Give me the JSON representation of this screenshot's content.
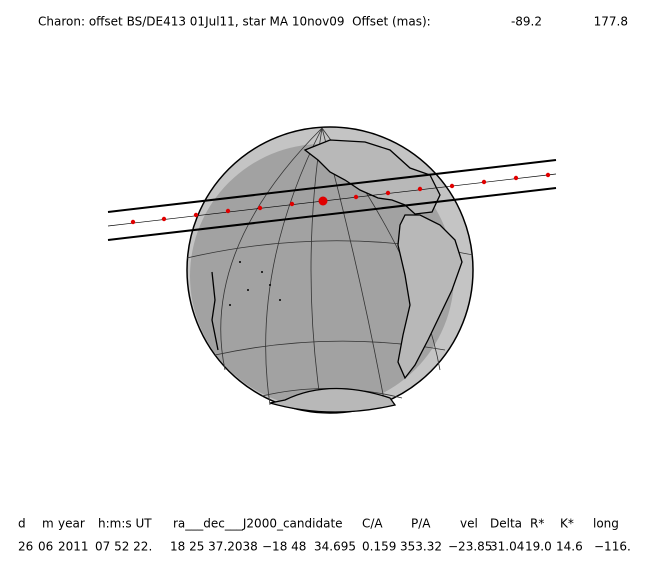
{
  "header": {
    "title": "Charon: offset BS/DE413 01Jul11, star MA 10nov09  Offset (mas):",
    "offset_ra": "-89.2",
    "offset_dec": "177.8"
  },
  "table": {
    "headers": [
      "d",
      "m",
      "year",
      "h:m:s UT",
      "ra___dec___J2000_candidate",
      "C/A",
      "P/A",
      "vel",
      "Delta",
      "R*",
      "K*",
      "long"
    ],
    "values": [
      "26",
      "06",
      "2011",
      "07 52 22.",
      "18 25 37.2038",
      "−18 48  34.695",
      "0.159",
      "353.32",
      "−23.85",
      "31.04",
      "19.0",
      "14.6",
      "−116."
    ]
  }
}
